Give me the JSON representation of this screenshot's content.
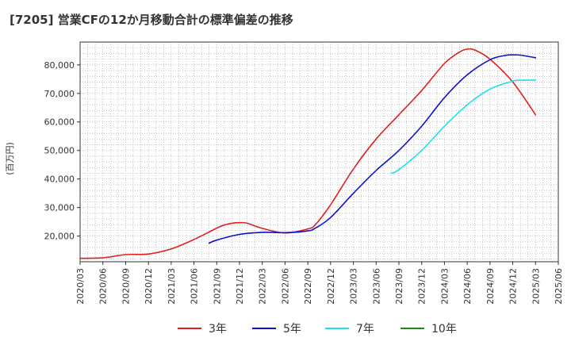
{
  "chart_data": {
    "type": "line",
    "title": "[7205]  営業CFの12か月移動合計の標準偏差の推移",
    "ylabel": "(百万円)",
    "xlabel": "",
    "ylim": [
      11000,
      88000
    ],
    "yticks": [
      20000,
      30000,
      40000,
      50000,
      60000,
      70000,
      80000
    ],
    "ytick_labels": [
      "20,000",
      "30,000",
      "40,000",
      "50,000",
      "60,000",
      "70,000",
      "80,000"
    ],
    "x_ticks": [
      "2020/03",
      "2020/06",
      "2020/09",
      "2020/12",
      "2021/03",
      "2021/06",
      "2021/09",
      "2021/12",
      "2022/03",
      "2022/06",
      "2022/09",
      "2022/12",
      "2023/03",
      "2023/06",
      "2023/09",
      "2023/12",
      "2024/03",
      "2024/06",
      "2024/09",
      "2024/12",
      "2025/03",
      "2025/06"
    ],
    "grid": true,
    "legend_position": "bottom",
    "series": [
      {
        "name": "3年",
        "color": "#e02020",
        "x": [
          "2020/03",
          "2020/06",
          "2020/09",
          "2020/12",
          "2021/03",
          "2021/06",
          "2021/09",
          "2021/10",
          "2021/11",
          "2021/12",
          "2022/01",
          "2022/03",
          "2022/06",
          "2022/09",
          "2022/10",
          "2022/12",
          "2023/03",
          "2023/06",
          "2023/09",
          "2023/12",
          "2024/03",
          "2024/05",
          "2024/06",
          "2024/07",
          "2024/09",
          "2024/12",
          "2025/03"
        ],
        "values": [
          12200,
          12400,
          13500,
          13700,
          15500,
          18800,
          22800,
          23900,
          24500,
          24700,
          24500,
          22700,
          21100,
          22500,
          24000,
          31000,
          43500,
          54000,
          62500,
          71000,
          80500,
          84500,
          85500,
          85200,
          82000,
          74000,
          62500
        ]
      },
      {
        "name": "5年",
        "color": "#0a14c8",
        "x": [
          "2021/08",
          "2021/09",
          "2021/12",
          "2022/03",
          "2022/06",
          "2022/09",
          "2022/10",
          "2022/12",
          "2023/03",
          "2023/06",
          "2023/09",
          "2023/12",
          "2024/03",
          "2024/06",
          "2024/09",
          "2024/11",
          "2024/12",
          "2025/01",
          "2025/03"
        ],
        "values": [
          17500,
          18600,
          20600,
          21300,
          21200,
          21800,
          22800,
          26500,
          35000,
          43000,
          50000,
          58500,
          68500,
          76500,
          81800,
          83300,
          83500,
          83400,
          82500
        ]
      },
      {
        "name": "7年",
        "color": "#22e0ee",
        "x": [
          "2023/08",
          "2023/09",
          "2023/12",
          "2024/03",
          "2024/06",
          "2024/09",
          "2024/12",
          "2025/01",
          "2025/03"
        ],
        "values": [
          42000,
          43300,
          50000,
          58500,
          66000,
          71500,
          74300,
          74600,
          74700
        ]
      },
      {
        "name": "10年",
        "color": "#1a8a1a",
        "x": [],
        "values": []
      }
    ]
  }
}
